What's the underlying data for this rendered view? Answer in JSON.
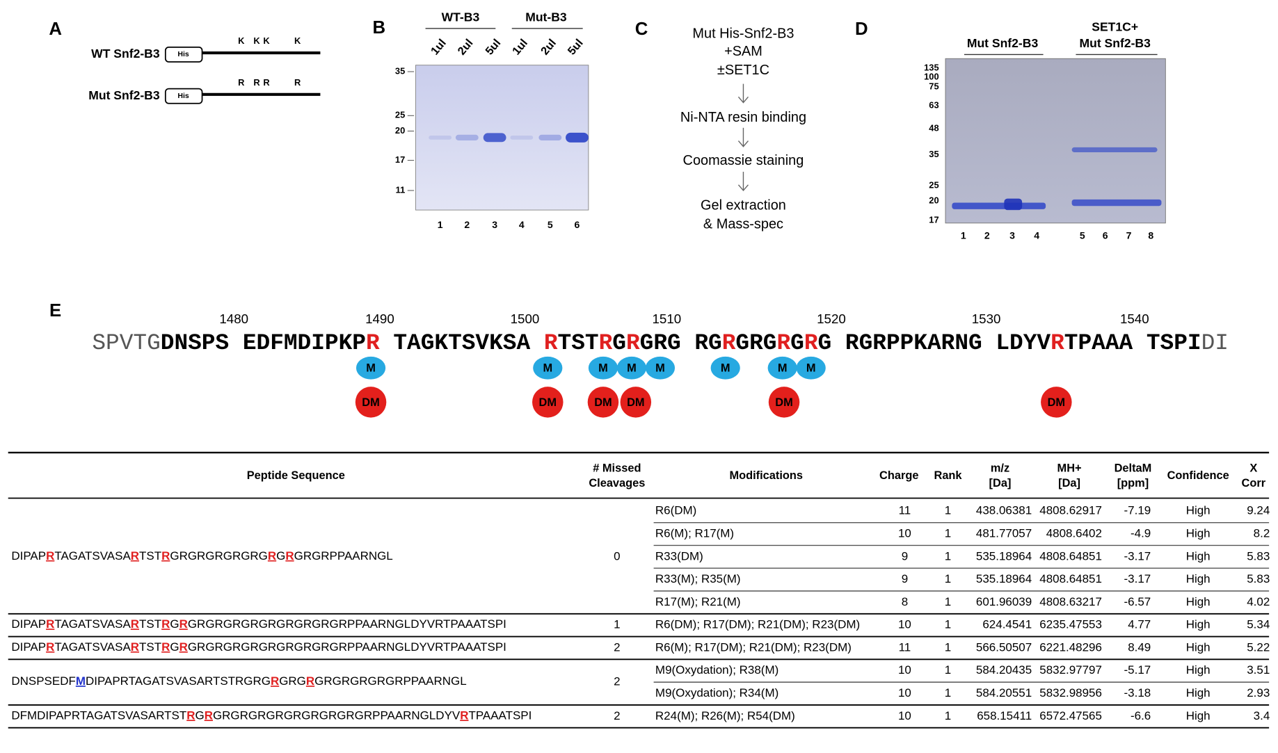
{
  "panel_a": {
    "label": "A",
    "wt_label": "WT Snf2-B3",
    "mut_label": "Mut Snf2-B3",
    "tag": "His",
    "wt_sites": [
      "K",
      "K",
      "K",
      "K"
    ],
    "mut_sites": [
      "R",
      "R",
      "R",
      "R"
    ]
  },
  "panel_b": {
    "label": "B",
    "groups": [
      "WT-B3",
      "Mut-B3"
    ],
    "lane_volumes": [
      "1ul",
      "2ul",
      "5ul",
      "1ul",
      "2ul",
      "5ul"
    ],
    "markers": [
      35,
      25,
      20,
      17,
      11
    ],
    "lane_numbers": [
      1,
      2,
      3,
      4,
      5,
      6
    ]
  },
  "panel_c": {
    "label": "C",
    "steps": [
      [
        "Mut His-Snf2-B3",
        "+SAM",
        "±SET1C"
      ],
      [
        "Ni-NTA resin binding"
      ],
      [
        "Coomassie staining"
      ],
      [
        "Gel extraction",
        "& Mass-spec"
      ]
    ]
  },
  "panel_d": {
    "label": "D",
    "groups": [
      [
        "Mut Snf2-B3"
      ],
      [
        "SET1C+",
        "Mut Snf2-B3"
      ]
    ],
    "markers": [
      135,
      100,
      75,
      63,
      48,
      35,
      25,
      20,
      17
    ],
    "lane_numbers": [
      1,
      2,
      3,
      4,
      5,
      6,
      7,
      8
    ]
  },
  "panel_e": {
    "label": "E",
    "positions": [
      1480,
      1490,
      1500,
      1510,
      1520,
      1530,
      1540
    ],
    "sequence": [
      {
        "text": "SPVTG",
        "weight": "normal",
        "color": "#555555"
      },
      {
        "text": "DNSPS EDFMDIPKP",
        "weight": "bold",
        "color": "#000000"
      },
      {
        "text": "R",
        "weight": "bold",
        "color": "#e02020"
      },
      {
        "text": " TAGKTSVKSA ",
        "weight": "bold",
        "color": "#000000"
      },
      {
        "text": "R",
        "weight": "bold",
        "color": "#e02020"
      },
      {
        "text": "TST",
        "weight": "bold",
        "color": "#000000"
      },
      {
        "text": "R",
        "weight": "bold",
        "color": "#e02020"
      },
      {
        "text": "G",
        "weight": "bold",
        "color": "#000000"
      },
      {
        "text": "R",
        "weight": "bold",
        "color": "#e02020"
      },
      {
        "text": "GRG RG",
        "weight": "bold",
        "color": "#000000"
      },
      {
        "text": "R",
        "weight": "bold",
        "color": "#e02020"
      },
      {
        "text": "GRG",
        "weight": "bold",
        "color": "#000000"
      },
      {
        "text": "R",
        "weight": "bold",
        "color": "#e02020"
      },
      {
        "text": "G",
        "weight": "bold",
        "color": "#000000"
      },
      {
        "text": "R",
        "weight": "bold",
        "color": "#e02020"
      },
      {
        "text": "G RGRPPKARNG LDYV",
        "weight": "bold",
        "color": "#000000"
      },
      {
        "text": "R",
        "weight": "bold",
        "color": "#e02020"
      },
      {
        "text": "TPAAA TSPI",
        "weight": "bold",
        "color": "#000000"
      },
      {
        "text": "DI",
        "weight": "normal",
        "color": "#555555"
      }
    ],
    "methyl_marks": [
      "M",
      "M",
      "M",
      "M",
      "M",
      "M",
      "M",
      "M"
    ],
    "dimethyl_marks": [
      "DM",
      "DM",
      "DM",
      "DM",
      "DM",
      "DM"
    ]
  },
  "table": {
    "headers": [
      [
        "Peptide Sequence"
      ],
      [
        "# Missed",
        "Cleavages"
      ],
      [
        "Modifications"
      ],
      [
        "Charge"
      ],
      [
        "Rank"
      ],
      [
        "m/z",
        "[Da]"
      ],
      [
        "MH+",
        "[Da]"
      ],
      [
        "DeltaM",
        "[ppm]"
      ],
      [
        "Confidence"
      ],
      [
        "X",
        "Corr"
      ]
    ],
    "groups": [
      {
        "peptide": [
          {
            "text": "DIPAP"
          },
          {
            "text": "R",
            "color": "#e02020"
          },
          {
            "text": "TAGATSVASA"
          },
          {
            "text": "R",
            "color": "#e02020"
          },
          {
            "text": "TST"
          },
          {
            "text": "R",
            "color": "#e02020"
          },
          {
            "text": "GRGRGRGRGRG"
          },
          {
            "text": "R",
            "color": "#e02020"
          },
          {
            "text": "G"
          },
          {
            "text": "R",
            "color": "#e02020"
          },
          {
            "text": "GRGRPPAARNGL"
          }
        ],
        "missed": 0,
        "rows": [
          [
            "R6(DM)",
            11,
            1,
            438.06381,
            4808.62917,
            -7.19,
            "High",
            9.24
          ],
          [
            "R6(M); R17(M)",
            10,
            1,
            481.77057,
            4808.6402,
            -4.9,
            "High",
            8.2
          ],
          [
            "R33(DM)",
            9,
            1,
            535.18964,
            4808.64851,
            -3.17,
            "High",
            5.83
          ],
          [
            "R33(M); R35(M)",
            9,
            1,
            535.18964,
            4808.64851,
            -3.17,
            "High",
            5.83
          ],
          [
            "R17(M); R21(M)",
            8,
            1,
            601.96039,
            4808.63217,
            -6.57,
            "High",
            4.02
          ]
        ]
      },
      {
        "peptide": [
          {
            "text": "DIPAP"
          },
          {
            "text": "R",
            "color": "#e02020"
          },
          {
            "text": "TAGATSVASA"
          },
          {
            "text": "R",
            "color": "#e02020"
          },
          {
            "text": "TST"
          },
          {
            "text": "R",
            "color": "#e02020"
          },
          {
            "text": "G"
          },
          {
            "text": "R",
            "color": "#e02020"
          },
          {
            "text": "GRGRGRGRGRGRGRGRGRPPAARNGLDYVRTPAAATSPI"
          }
        ],
        "missed": 1,
        "rows": [
          [
            "R6(DM); R17(DM); R21(DM); R23(DM)",
            10,
            1,
            624.4541,
            6235.47553,
            4.77,
            "High",
            5.34
          ]
        ]
      },
      {
        "peptide": [
          {
            "text": "DIPAP"
          },
          {
            "text": "R",
            "color": "#e02020"
          },
          {
            "text": "TAGATSVASA"
          },
          {
            "text": "R",
            "color": "#e02020"
          },
          {
            "text": "TST"
          },
          {
            "text": "R",
            "color": "#e02020"
          },
          {
            "text": "G"
          },
          {
            "text": "R",
            "color": "#e02020"
          },
          {
            "text": "GRGRGRGRGRGRGRGRGRPPAARNGLDYVRTPAAATSPI"
          }
        ],
        "missed": 2,
        "rows": [
          [
            "R6(M); R17(DM); R21(DM); R23(DM)",
            11,
            1,
            566.50507,
            6221.48296,
            8.49,
            "High",
            5.22
          ]
        ]
      },
      {
        "peptide": [
          {
            "text": "DNSPSEDF"
          },
          {
            "text": "M",
            "color": "#2233cc"
          },
          {
            "text": "DIPAPRTAGATSVASARTSTRGRG"
          },
          {
            "text": "R",
            "color": "#e02020"
          },
          {
            "text": "GRG"
          },
          {
            "text": "R",
            "color": "#e02020"
          },
          {
            "text": "GRGRGRGRGRPPAARNGL"
          }
        ],
        "missed": 2,
        "rows": [
          [
            "M9(Oxydation); R38(M)",
            10,
            1,
            584.20435,
            5832.97797,
            -5.17,
            "High",
            3.51
          ],
          [
            "M9(Oxydation); R34(M)",
            10,
            1,
            584.20551,
            5832.98956,
            -3.18,
            "High",
            2.93
          ]
        ]
      },
      {
        "peptide": [
          {
            "text": "DFMDIPAPRTAGATSVASARTST"
          },
          {
            "text": "R",
            "color": "#e02020"
          },
          {
            "text": "G"
          },
          {
            "text": "R",
            "color": "#e02020"
          },
          {
            "text": "GRGRGRGRGRGRGRGRGRPPAARNGLDYV"
          },
          {
            "text": "R",
            "color": "#e02020"
          },
          {
            "text": "TPAAATSPI"
          }
        ],
        "missed": 2,
        "rows": [
          [
            "R24(M); R26(M); R54(DM)",
            10,
            1,
            658.15411,
            6572.47565,
            -6.6,
            "High",
            3.4
          ]
        ]
      }
    ]
  }
}
